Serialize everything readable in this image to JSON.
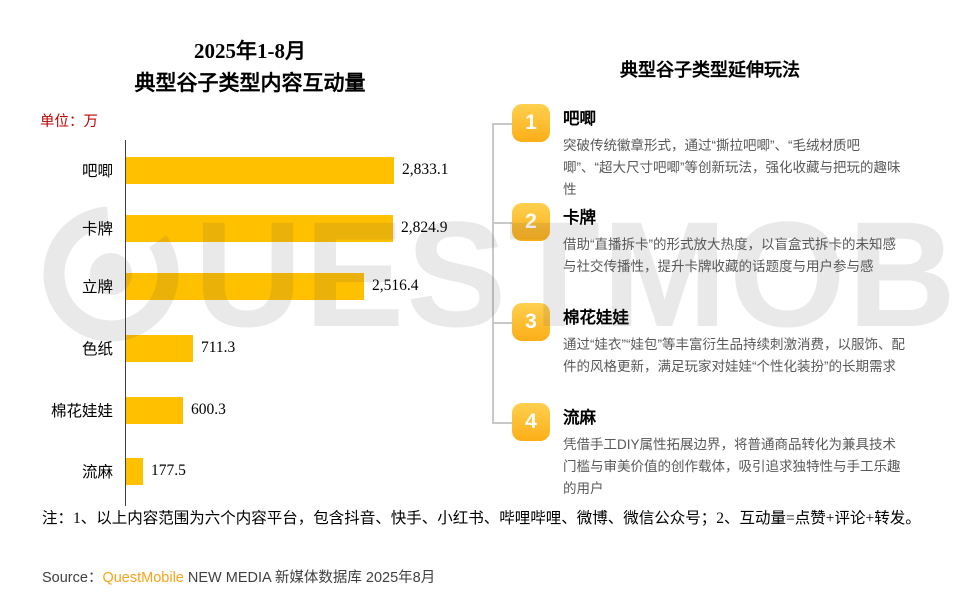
{
  "chart_data": {
    "type": "bar",
    "orientation": "horizontal",
    "title": "2025年1-8月 典型谷子类型内容互动量",
    "title_lines": [
      "2025年1-8月",
      "典型谷子类型内容互动量"
    ],
    "unit_label": "单位：万",
    "categories": [
      "吧唧",
      "卡牌",
      "立牌",
      "色纸",
      "棉花娃娃",
      "流麻"
    ],
    "values": [
      2833.1,
      2824.9,
      2516.4,
      711.3,
      600.3,
      177.5
    ],
    "value_labels": [
      "2,833.1",
      "2,824.9",
      "2,516.4",
      "711.3",
      "600.3",
      "177.5"
    ],
    "xlabel": "",
    "ylabel": "",
    "xlim": [
      0,
      3000
    ],
    "grid": false,
    "legend": false,
    "bar_color": "#FFC000"
  },
  "right_panel": {
    "title": "典型谷子类型延伸玩法",
    "items": [
      {
        "number": "1",
        "title": "吧唧",
        "desc": "突破传统徽章形式，通过“撕拉吧唧”、“毛绒材质吧唧”、“超大尺寸吧唧”等创新玩法，强化收藏与把玩的趣味性"
      },
      {
        "number": "2",
        "title": "卡牌",
        "desc": "借助“直播拆卡”的形式放大热度，以盲盒式拆卡的未知感与社交传播性，提升卡牌收藏的话题度与用户参与感"
      },
      {
        "number": "3",
        "title": "棉花娃娃",
        "desc": "通过“娃衣”“娃包”等丰富衍生品持续刺激消费，以服饰、配件的风格更新，满足玩家对娃娃“个性化装扮”的长期需求"
      },
      {
        "number": "4",
        "title": "流麻",
        "desc": "凭借手工DIY属性拓展边界，将普通商品转化为兼具技术门槛与审美价值的创作载体，吸引追求独特性与手工乐趣的用户"
      }
    ]
  },
  "footer": {
    "note": "注：1、以上内容范围为六个内容平台，包含抖音、快手、小红书、哔哩哔哩、微博、微信公众号；2、互动量=点赞+评论+转发。",
    "source_label": "Source：",
    "source_brand": "QuestMobile",
    "source_suffix": " NEW MEDIA 新媒体数据库 2025年8月"
  },
  "watermark": {
    "text": "UESTMOBILE"
  },
  "colors": {
    "bar": "#FFC000",
    "unit_red": "#C00000",
    "brand_orange": "#FAA41A",
    "desc_gray": "#595959"
  }
}
